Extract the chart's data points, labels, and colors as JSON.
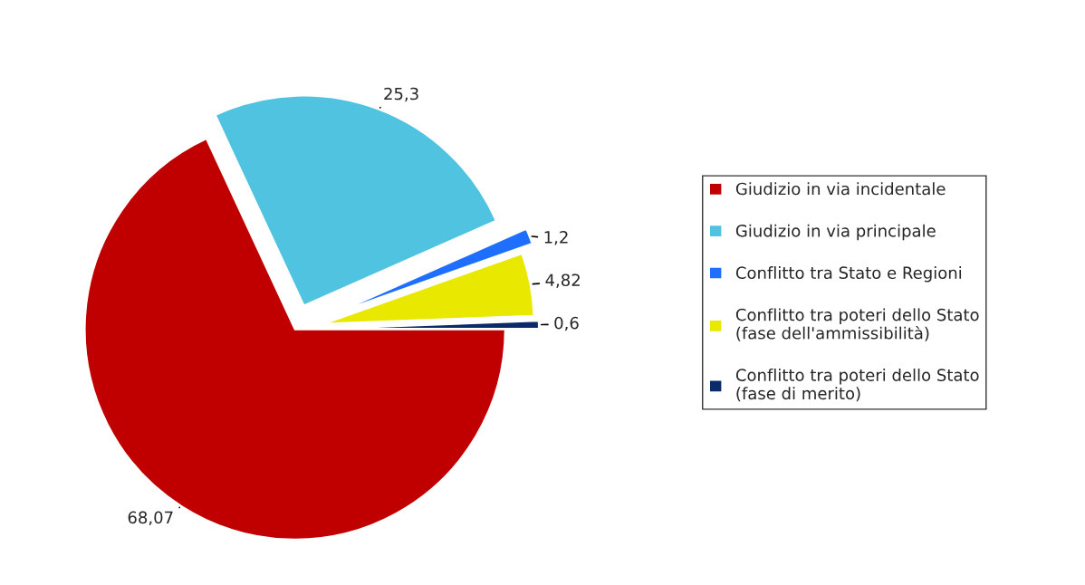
{
  "chart_data": {
    "type": "pie",
    "categories": [
      "Giudizio in via incidentale",
      "Giudizio in via principale",
      "Conflitto tra Stato e Regioni",
      "Conflitto tra poteri dello Stato\n(fase dell'ammissibilità)",
      "Conflitto tra poteri dello Stato\n(fase di merito)"
    ],
    "values": [
      68.07,
      25.3,
      1.2,
      4.82,
      0.6
    ],
    "value_labels": [
      "68,07",
      "25,3",
      "1,2",
      "4,82",
      "0,6"
    ],
    "colors": [
      "#c00000",
      "#4fc3e0",
      "#1f6fff",
      "#e8e800",
      "#0a2a6a"
    ],
    "legend": "right"
  }
}
